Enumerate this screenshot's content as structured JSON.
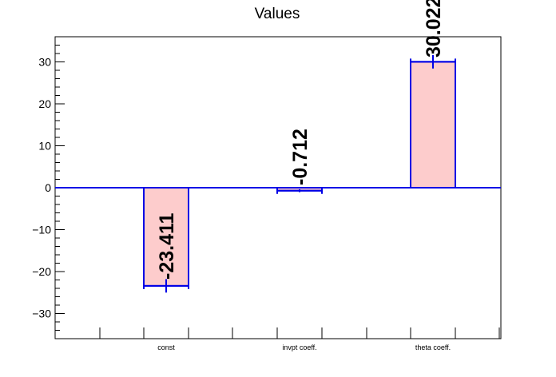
{
  "chart_data": {
    "type": "bar",
    "title": "Values",
    "categories": [
      "const",
      "invpt coeff.",
      "theta coeff."
    ],
    "values": [
      -23.411,
      -0.712,
      30.022
    ],
    "errors": [
      1.6,
      0.35,
      1.6
    ],
    "value_labels": [
      "-23.411",
      "-0.712",
      "30.022"
    ],
    "ylim": [
      -36,
      36
    ],
    "y_ticks": [
      -30,
      -20,
      -10,
      0,
      10,
      20,
      30
    ],
    "y_tick_labels": [
      "−30",
      "−20",
      "−10",
      "0",
      "10",
      "20",
      "30"
    ],
    "xlabel": "",
    "ylabel": "",
    "grid": false,
    "colors": {
      "bar_fill": "#fdcccc",
      "bar_edge": "#0000e6",
      "axis": "#000000",
      "zero_line": "#0000e6",
      "text": "#000000"
    }
  }
}
